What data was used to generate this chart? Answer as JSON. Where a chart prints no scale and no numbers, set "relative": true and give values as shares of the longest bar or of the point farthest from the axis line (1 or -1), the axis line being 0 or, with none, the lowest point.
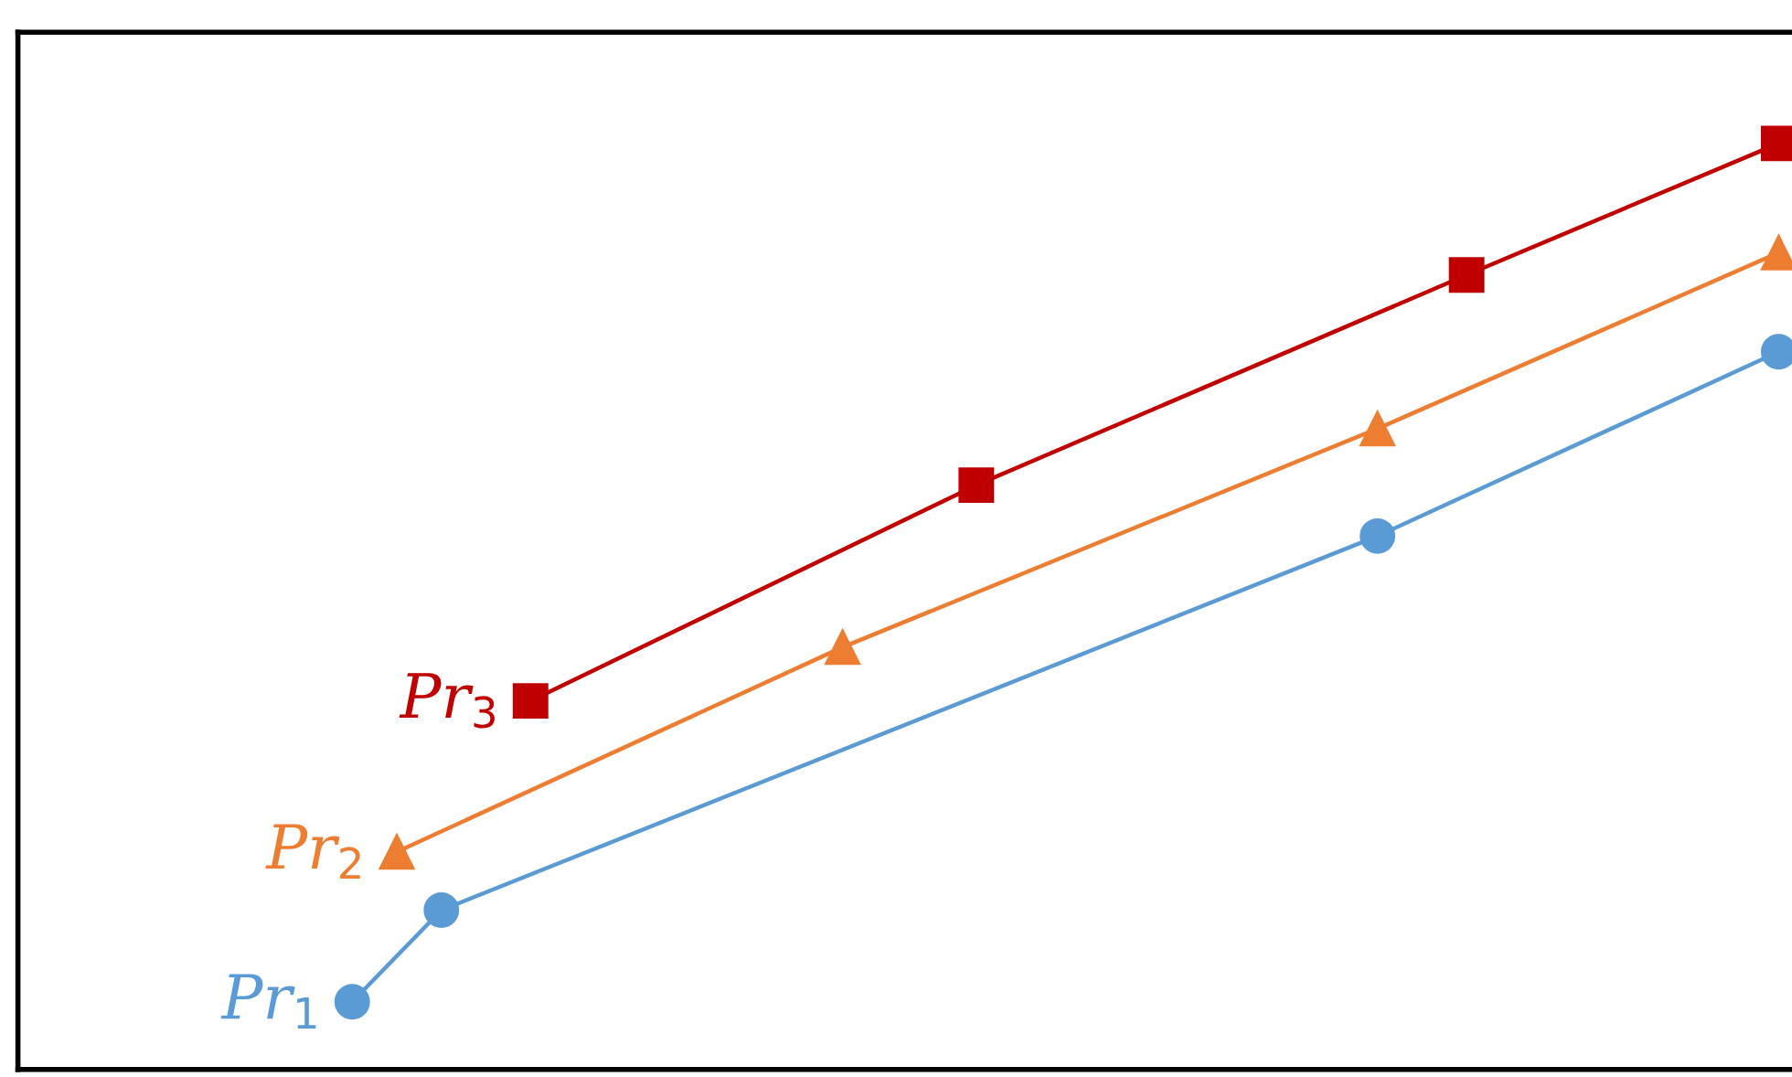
{
  "chart_data": {
    "type": "line",
    "relative": true,
    "categories": [
      null,
      null,
      null,
      null,
      null,
      null,
      null,
      null,
      null,
      null,
      null,
      null,
      null,
      null,
      null,
      null,
      null,
      null,
      null,
      null,
      null,
      null,
      null,
      null,
      null,
      null,
      null,
      null,
      null,
      null,
      null,
      null,
      null,
      null,
      null,
      null,
      null,
      null,
      null,
      null
    ],
    "series": [
      {
        "name": "Pr$_{1}$",
        "color": "#5b9bd5",
        "marker": "circle",
        "values": [
          null,
          null,
          null,
          null,
          null,
          null,
          null,
          0.073,
          null,
          0.172,
          null,
          null,
          null,
          null,
          null,
          null,
          null,
          null,
          null,
          null,
          null,
          null,
          null,
          null,
          null,
          null,
          null,
          null,
          null,
          null,
          0.576,
          null,
          null,
          null,
          null,
          null,
          null,
          null,
          null,
          0.775
        ]
      },
      {
        "name": "Pr$_{2}$",
        "color": "#ed7d31",
        "marker": "triangle",
        "values": [
          null,
          null,
          null,
          null,
          null,
          null,
          null,
          null,
          0.235,
          null,
          null,
          null,
          null,
          null,
          null,
          null,
          null,
          null,
          0.456,
          null,
          null,
          null,
          null,
          null,
          null,
          null,
          null,
          null,
          null,
          null,
          0.692,
          null,
          null,
          null,
          null,
          null,
          null,
          null,
          null,
          0.882
        ]
      },
      {
        "name": "Pr$_{3}$",
        "color": "#c00000",
        "marker": "square",
        "values": [
          null,
          null,
          null,
          null,
          null,
          null,
          null,
          null,
          null,
          null,
          null,
          0.398,
          null,
          null,
          null,
          null,
          null,
          null,
          null,
          null,
          null,
          0.631,
          null,
          null,
          null,
          null,
          null,
          null,
          null,
          null,
          null,
          null,
          0.858,
          null,
          null,
          null,
          null,
          null,
          null,
          1.0
        ]
      }
    ]
  }
}
